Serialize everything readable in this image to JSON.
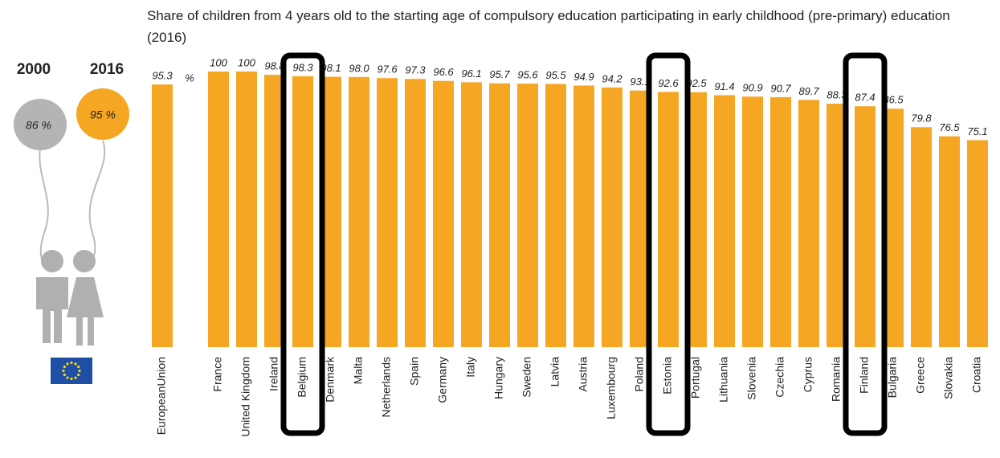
{
  "chart_data": {
    "type": "bar",
    "title": "Share of children from 4 years old to the starting age of compulsory education participating in early childhood (pre-primary) education (2016)",
    "unit": "%",
    "balloons": [
      {
        "year": "2000",
        "label": "86 %"
      },
      {
        "year": "2016",
        "label": "95 %"
      }
    ],
    "categories": [
      "EuropeanUnion",
      "France",
      "United Kingdom",
      "Ireland",
      "Belgium",
      "Denmark",
      "Malta",
      "Netherlands",
      "Spain",
      "Germany",
      "Italy",
      "Hungary",
      "Sweden",
      "Latvia",
      "Austria",
      "Luxembourg",
      "Poland",
      "Estonia",
      "Portugal",
      "Lithuania",
      "Slovenia",
      "Czechia",
      "Cyprus",
      "Romania",
      "Finland",
      "Bulgaria",
      "Greece",
      "Slovakia",
      "Croatia"
    ],
    "values": [
      95.3,
      100,
      100,
      98.8,
      98.3,
      98.1,
      98.0,
      97.6,
      97.3,
      96.6,
      96.1,
      95.7,
      95.6,
      95.5,
      94.9,
      94.2,
      93.1,
      92.6,
      92.5,
      91.4,
      90.9,
      90.7,
      89.7,
      88.3,
      87.4,
      86.5,
      79.8,
      76.5,
      75.1
    ],
    "value_labels": [
      "95.3",
      "100",
      "100",
      "98.8",
      "98.3",
      "98.1",
      "98.0",
      "97.6",
      "97.3",
      "96.6",
      "96.1",
      "95.7",
      "95.6",
      "95.5",
      "94.9",
      "94.2",
      "93.1",
      "92.6",
      "92.5",
      "91.4",
      "90.9",
      "90.7",
      "89.7",
      "88.3",
      "87.4",
      "86.5",
      "79.8",
      "76.5",
      "75.1"
    ],
    "color": "#f5a623",
    "highlight": [
      4,
      17,
      24
    ],
    "ylim": [
      0,
      100
    ]
  }
}
